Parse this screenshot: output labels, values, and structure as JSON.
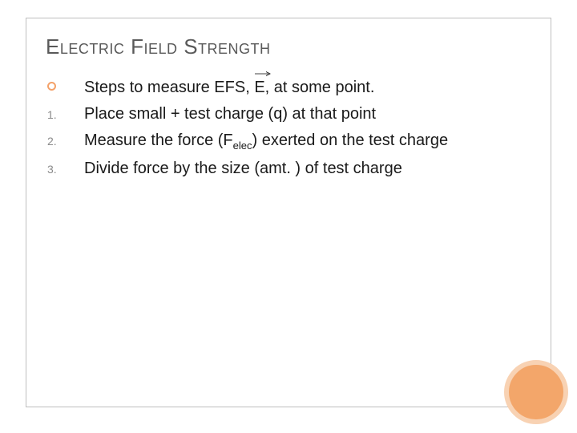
{
  "title": "Electric Field Strength",
  "title_color": "#595959",
  "title_fontsize": 26,
  "body_fontsize": 20,
  "body_color": "#1a1a1a",
  "bullet_ring_color": "#f4a26a",
  "number_color": "#8a8a8a",
  "border_color": "#bfbfbf",
  "corner_circle": {
    "fill": "#f3a66a",
    "ring": "#f8d2b3"
  },
  "items": [
    {
      "marker": "ring",
      "text_parts": [
        "Steps to measure EFS, ",
        {
          "vec": "E"
        },
        ", at some point."
      ]
    },
    {
      "marker": "1.",
      "text_parts": [
        "Place small + test charge (q) at that point"
      ]
    },
    {
      "marker": "2.",
      "text_parts": [
        "Measure the force (F",
        {
          "sub": "elec"
        },
        ") exerted on the test charge"
      ]
    },
    {
      "marker": "3.",
      "text_parts": [
        "Divide force by the size (amt. ) of test charge"
      ]
    }
  ],
  "vector_arrow": {
    "width": 22,
    "height": 8,
    "stroke": "#000000",
    "stroke_width": 0.8
  }
}
